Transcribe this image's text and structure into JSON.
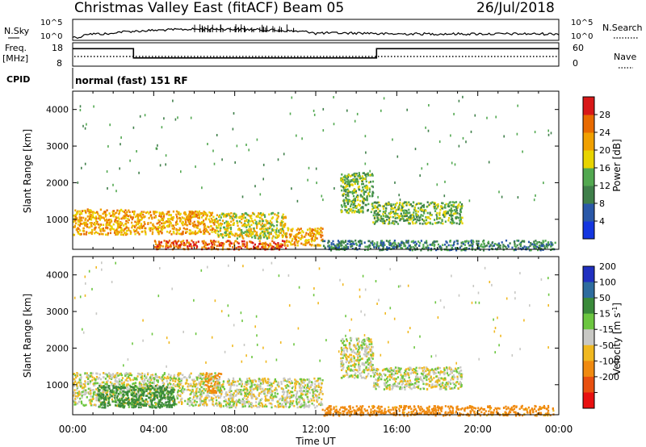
{
  "header": {
    "station": "Christmas Valley East (fitACF)",
    "beam": "Beam 05",
    "date": "26/Jul/2018"
  },
  "panels": {
    "nsky": {
      "label": "N.Sky",
      "ytick_top": "10^5",
      "ytick_bottom": "10^0",
      "right_ytick_top": "10^5",
      "right_ytick_bottom": "10^0",
      "right_label": "N.Search"
    },
    "freq": {
      "label_top": "Freq.",
      "label_unit": "[MHz]",
      "ytick_top": "18",
      "ytick_bottom": "8",
      "right_ytick_top": "60",
      "right_ytick_bottom": "0",
      "right_label": "Nave"
    },
    "cpid": {
      "label": "CPID",
      "text": "normal (fast) 151 RF"
    }
  },
  "axes": {
    "ylabel": "Slant Range [km]",
    "yticks": [
      "1000",
      "2000",
      "3000",
      "4000"
    ],
    "xticks": [
      "00:00",
      "04:00",
      "08:00",
      "12:00",
      "16:00",
      "20:00",
      "00:00"
    ],
    "xlabel": "Time UT"
  },
  "colorbars": {
    "power": {
      "label": "Power [dB]",
      "ticks": [
        "4",
        "8",
        "12",
        "16",
        "20",
        "24",
        "28"
      ],
      "colors": [
        "#1436e0",
        "#2a58a8",
        "#3f7f4a",
        "#52a850",
        "#e8d400",
        "#f0a000",
        "#e86a00",
        "#d81818"
      ]
    },
    "velocity": {
      "label": "Velocity [m s",
      "label_sup": "-1",
      "label_end": "]",
      "ticks": [
        "200",
        "100",
        "50",
        "15",
        "-15",
        "-50",
        "-100",
        "-200"
      ],
      "colors": [
        "#2030c0",
        "#2e6c9e",
        "#3a8a3a",
        "#6cc640",
        "#c8c8c4",
        "#f0b820",
        "#f08a10",
        "#e85010",
        "#e81010"
      ]
    }
  },
  "chart_data": [
    {
      "type": "line",
      "title": "N.Sky",
      "x_range": [
        "00:00",
        "24:00"
      ],
      "ylim": [
        "10^0",
        "10^5"
      ]
    },
    {
      "type": "line",
      "title": "Freq.",
      "ylabel": "[MHz]",
      "ylim": [
        8,
        18
      ],
      "x": [
        0,
        3,
        3,
        15,
        15,
        24
      ],
      "series": [
        {
          "name": "Freq.",
          "values": [
            15.5,
            15.5,
            11.5,
            11.5,
            15.5,
            15.5
          ]
        }
      ]
    },
    {
      "type": "heatmap",
      "title": "Power [dB]",
      "xlabel": "Time UT",
      "ylabel": "Slant Range [km]",
      "x_range": [
        "00:00",
        "24:00"
      ],
      "y_range": [
        180,
        4500
      ],
      "color_ticks": [
        4,
        8,
        12,
        16,
        20,
        24,
        28
      ],
      "regions": [
        {
          "t0": 0.0,
          "t1": 2.8,
          "r0": 600,
          "r1": 1300,
          "level": 20
        },
        {
          "t0": 2.8,
          "t1": 7.0,
          "r0": 620,
          "r1": 1250,
          "level": 20
        },
        {
          "t0": 7.0,
          "t1": 10.5,
          "r0": 500,
          "r1": 1200,
          "level": 16
        },
        {
          "t0": 10.5,
          "t1": 12.3,
          "r0": 300,
          "r1": 800,
          "level": 20
        },
        {
          "t0": 4.0,
          "t1": 10.5,
          "r0": 200,
          "r1": 450,
          "level": 24
        },
        {
          "t0": 12.3,
          "t1": 23.8,
          "r0": 180,
          "r1": 450,
          "level": 8
        },
        {
          "t0": 13.2,
          "t1": 14.8,
          "r0": 1200,
          "r1": 2300,
          "level": 12
        },
        {
          "t0": 14.8,
          "t1": 19.2,
          "r0": 900,
          "r1": 1500,
          "level": 12
        }
      ]
    },
    {
      "type": "heatmap",
      "title": "Velocity",
      "xlabel": "Time UT",
      "ylabel": "Slant Range [km]",
      "x_range": [
        "00:00",
        "24:00"
      ],
      "y_range": [
        180,
        4500
      ],
      "color_ticks": [
        200,
        100,
        50,
        15,
        -15,
        -50,
        -100,
        -200
      ],
      "regions": [
        {
          "t0": 0.0,
          "t1": 7.0,
          "r0": 450,
          "r1": 1350,
          "level": 0
        },
        {
          "t0": 1.2,
          "t1": 5.0,
          "r0": 400,
          "r1": 1000,
          "level": 50
        },
        {
          "t0": 6.5,
          "t1": 7.3,
          "r0": 800,
          "r1": 1350,
          "level": -50
        },
        {
          "t0": 7.0,
          "t1": 12.3,
          "r0": 400,
          "r1": 1200,
          "level": 0
        },
        {
          "t0": 12.3,
          "t1": 23.8,
          "r0": 180,
          "r1": 450,
          "level": -50
        },
        {
          "t0": 13.2,
          "t1": 14.8,
          "r0": 1200,
          "r1": 2300,
          "level": 0
        },
        {
          "t0": 14.8,
          "t1": 19.2,
          "r0": 900,
          "r1": 1500,
          "level": 0
        }
      ]
    }
  ]
}
